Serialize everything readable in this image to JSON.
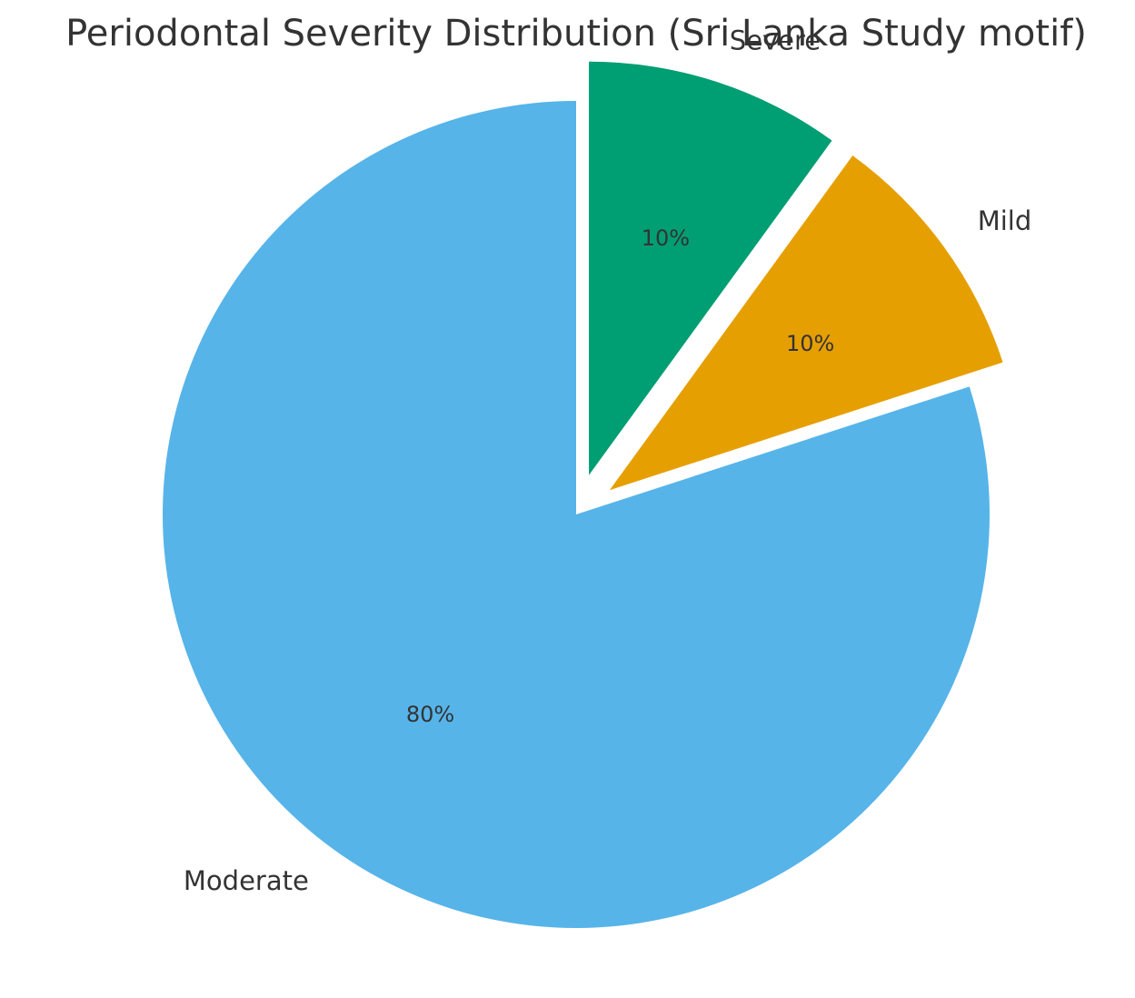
{
  "chart_data": {
    "type": "pie",
    "title": "Periodontal Severity Distribution (Sri Lanka Study motif)",
    "slices": [
      {
        "label": "Severe",
        "value": 10,
        "pct_label": "10%",
        "color": "#009E73",
        "exploded": true
      },
      {
        "label": "Mild",
        "value": 10,
        "pct_label": "10%",
        "color": "#E69F00",
        "exploded": true
      },
      {
        "label": "Moderate",
        "value": 80,
        "pct_label": "80%",
        "color": "#56B4E9",
        "exploded": false
      }
    ],
    "start_angle": 90,
    "direction": "clockwise",
    "legend": "none"
  }
}
